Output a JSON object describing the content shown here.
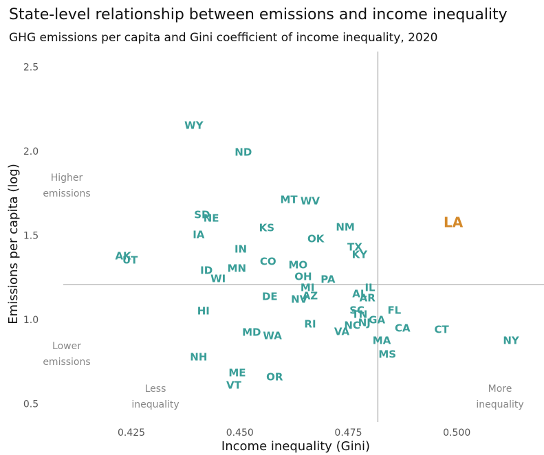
{
  "chart_data": {
    "type": "scatter",
    "title": "State-level relationship between emissions and income inequality",
    "subtitle": "GHG emissions per capita and Gini coefficient of income inequality, 2020",
    "x_label": "Income inequality (Gini)",
    "y_label": "Emissions per capita (log)",
    "labels": [
      "WY",
      "ND",
      "MT",
      "WV",
      "SD",
      "NE",
      "KS",
      "NM",
      "IA",
      "OK",
      "LA",
      "IN",
      "TX",
      "AK",
      "UT",
      "KY",
      "CO",
      "MO",
      "MN",
      "ID",
      "OH",
      "WI",
      "PA",
      "MI",
      "IL",
      "AL",
      "DE",
      "AZ",
      "AR",
      "NV",
      "HI",
      "SC",
      "FL",
      "TN",
      "GA",
      "NJ",
      "RI",
      "NC",
      "CA",
      "CT",
      "VA",
      "MD",
      "WA",
      "NY",
      "MA",
      "MS",
      "NH",
      "ME",
      "OR",
      "VT"
    ],
    "x": [
      0.4394,
      0.4508,
      0.4613,
      0.4662,
      0.4413,
      0.4434,
      0.4562,
      0.4743,
      0.4405,
      0.4675,
      0.4992,
      0.4502,
      0.4765,
      0.4231,
      0.4247,
      0.4776,
      0.4565,
      0.4634,
      0.4493,
      0.4423,
      0.4646,
      0.445,
      0.4703,
      0.4656,
      0.48,
      0.4776,
      0.4569,
      0.4662,
      0.4794,
      0.4637,
      0.4416,
      0.477,
      0.4856,
      0.4776,
      0.4816,
      0.4787,
      0.4662,
      0.4759,
      0.4875,
      0.4965,
      0.4735,
      0.4527,
      0.4575,
      0.5125,
      0.4827,
      0.484,
      0.4405,
      0.4494,
      0.458,
      0.4486
    ],
    "values": [
      2.155,
      1.996,
      1.714,
      1.706,
      1.624,
      1.604,
      1.547,
      1.551,
      1.506,
      1.482,
      1.576,
      1.42,
      1.433,
      1.38,
      1.355,
      1.388,
      1.347,
      1.327,
      1.306,
      1.294,
      1.257,
      1.245,
      1.241,
      1.192,
      1.192,
      1.155,
      1.139,
      1.143,
      1.131,
      1.122,
      1.053,
      1.057,
      1.057,
      1.033,
      1.0,
      0.984,
      0.976,
      0.967,
      0.951,
      0.943,
      0.931,
      0.927,
      0.906,
      0.878,
      0.878,
      0.796,
      0.78,
      0.686,
      0.661,
      0.612
    ],
    "colors": [
      "#3a9e98",
      "#3a9e98",
      "#3a9e98",
      "#3a9e98",
      "#3a9e98",
      "#3a9e98",
      "#3a9e98",
      "#3a9e98",
      "#3a9e98",
      "#3a9e98",
      "#d4892a",
      "#3a9e98",
      "#3a9e98",
      "#3a9e98",
      "#3a9e98",
      "#3a9e98",
      "#3a9e98",
      "#3a9e98",
      "#3a9e98",
      "#3a9e98",
      "#3a9e98",
      "#3a9e98",
      "#3a9e98",
      "#3a9e98",
      "#3a9e98",
      "#3a9e98",
      "#3a9e98",
      "#3a9e98",
      "#3a9e98",
      "#3a9e98",
      "#3a9e98",
      "#3a9e98",
      "#3a9e98",
      "#3a9e98",
      "#3a9e98",
      "#3a9e98",
      "#3a9e98",
      "#3a9e98",
      "#3a9e98",
      "#3a9e98",
      "#3a9e98",
      "#3a9e98",
      "#3a9e98",
      "#3a9e98",
      "#3a9e98",
      "#3a9e98",
      "#3a9e98",
      "#3a9e98",
      "#3a9e98",
      "#3a9e98"
    ],
    "reference_lines": {
      "x": 0.4818,
      "y": 1.212,
      "color": "#bbbbbb"
    },
    "annotations": [
      "Higher emissions",
      "Lower emissions",
      "Less inequality",
      "More inequality"
    ],
    "xlim": [
      0.4093,
      0.5201
    ],
    "ylim": [
      0.396,
      2.596
    ],
    "xticks": [
      0.425,
      {
        "value": 0.45,
        "label": "0.450"
      },
      0.475,
      {
        "value": 0.5,
        "label": "0.500"
      }
    ],
    "yticks": [
      0.5,
      {
        "value": 1.0,
        "label": "1.0"
      },
      1.5,
      {
        "value": 2.0,
        "label": "2.0"
      },
      2.5
    ],
    "grid": false
  }
}
